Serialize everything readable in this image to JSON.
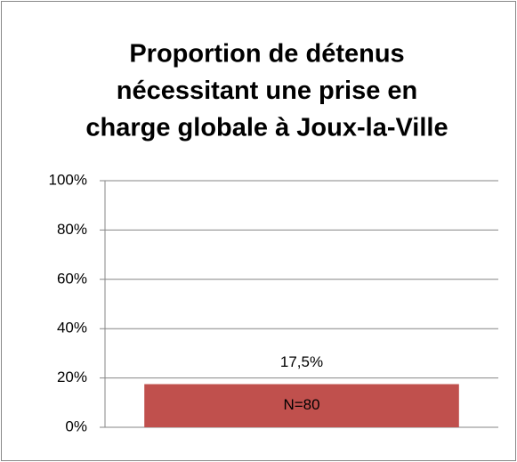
{
  "chart_data": {
    "type": "bar",
    "title": [
      "Proportion de détenus",
      "nécessitant une prise en",
      "charge globale à Joux-la-Ville"
    ],
    "categories": [
      null
    ],
    "values": [
      17.5
    ],
    "value_labels": [
      "17,5%"
    ],
    "annotations": [
      "N=80"
    ],
    "color": "#c0504d",
    "ylim": [
      0,
      100
    ],
    "yticks": [
      {
        "value": 0,
        "label": "0%"
      },
      {
        "value": 20,
        "label": "20%"
      },
      {
        "value": 40,
        "label": "40%"
      },
      {
        "value": 60,
        "label": "60%"
      },
      {
        "value": 80,
        "label": "80%"
      },
      {
        "value": 100,
        "label": "100%"
      }
    ],
    "grid": true
  }
}
